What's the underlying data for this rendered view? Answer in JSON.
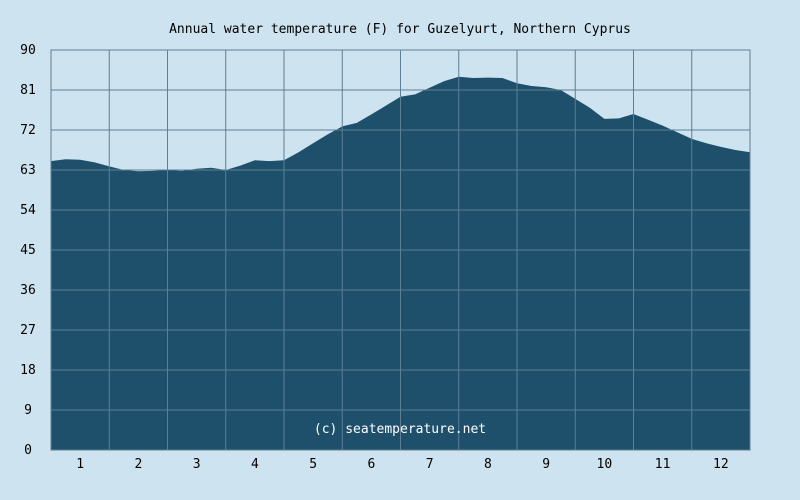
{
  "chart_data": {
    "type": "area",
    "title": "Annual water temperature (F) for Guzelyurt, Northern Cyprus",
    "xlabel": "",
    "ylabel": "",
    "xlim": [
      0.5,
      12.5
    ],
    "ylim": [
      0,
      90
    ],
    "x_ticks": [
      "1",
      "2",
      "3",
      "4",
      "5",
      "6",
      "7",
      "8",
      "9",
      "10",
      "11",
      "12"
    ],
    "y_ticks": [
      "0",
      "9",
      "18",
      "27",
      "36",
      "45",
      "54",
      "63",
      "72",
      "81",
      "90"
    ],
    "grid": true,
    "watermark": "(c) seatemperature.net",
    "series": [
      {
        "x": [
          0.5,
          0.75,
          1.0,
          1.25,
          1.5,
          1.75,
          2.0,
          2.25,
          2.5,
          2.75,
          3.0,
          3.25,
          3.5,
          3.75,
          4.0,
          4.25,
          4.5,
          4.75,
          5.0,
          5.25,
          5.5,
          5.75,
          6.0,
          6.25,
          6.5,
          6.75,
          7.0,
          7.25,
          7.5,
          7.75,
          8.0,
          8.25,
          8.5,
          8.75,
          9.0,
          9.25,
          9.5,
          9.75,
          10.0,
          10.25,
          10.5,
          10.75,
          11.0,
          11.25,
          11.5,
          11.75,
          12.0,
          12.25,
          12.5
        ],
        "values": [
          65.0,
          65.4,
          65.3,
          64.7,
          63.8,
          63.0,
          62.7,
          62.8,
          63.0,
          62.8,
          63.3,
          63.5,
          63.0,
          64.0,
          65.2,
          65.0,
          65.2,
          67.0,
          69.0,
          71.0,
          72.8,
          73.6,
          75.5,
          77.5,
          79.5,
          80.0,
          81.5,
          83.0,
          84.0,
          83.7,
          83.8,
          83.7,
          82.5,
          81.9,
          81.6,
          81.0,
          79.0,
          77.0,
          74.5,
          74.6,
          75.6,
          74.3,
          73.0,
          71.5,
          70.0,
          69.0,
          68.2,
          67.5,
          67.0
        ]
      }
    ],
    "colors": {
      "background": "#cde3ef",
      "plot_background": "#cde3ef",
      "area_fill": "#1e4f6b",
      "grid": "#5f7f94",
      "axis": "#5f7f94",
      "text": "#000000",
      "watermark": "#ffffff"
    }
  }
}
